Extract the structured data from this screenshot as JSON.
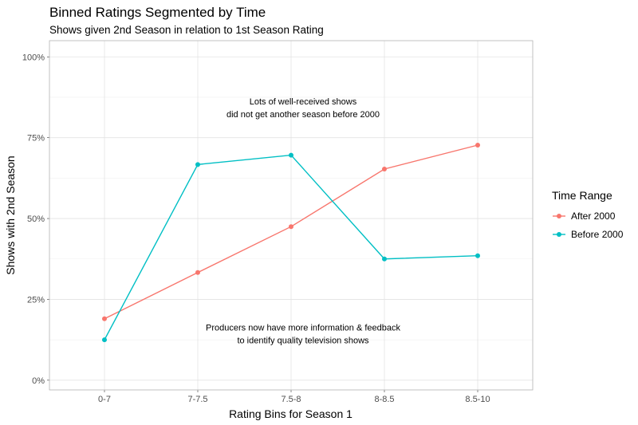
{
  "chart_data": {
    "type": "line",
    "title": "Binned Ratings Segmented by Time",
    "subtitle": "Shows given 2nd Season in relation to 1st Season Rating",
    "xlabel": "Rating Bins for Season 1",
    "ylabel": "Shows with 2nd Season",
    "categories": [
      "0-7",
      "7-7.5",
      "7.5-8",
      "8-8.5",
      "8.5-10"
    ],
    "y_ticks": [
      0,
      25,
      50,
      75,
      100
    ],
    "y_tick_labels": [
      "0%",
      "25%",
      "50%",
      "75%",
      "100%"
    ],
    "ylim": [
      -3,
      105
    ],
    "grid": true,
    "legend": {
      "title": "Time Range",
      "placement": "right"
    },
    "series": [
      {
        "name": "After 2000",
        "color": "#F8766D",
        "values": [
          19,
          33.3,
          47.5,
          65.3,
          72.7
        ]
      },
      {
        "name": "Before 2000",
        "color": "#00BFC4",
        "values": [
          12.5,
          66.7,
          69.6,
          37.5,
          38.5
        ]
      }
    ],
    "annotations": [
      {
        "lines": [
          "Lots of well-received shows",
          "did not get another season before 2000"
        ],
        "x_category": 3.0,
        "y": 84.3
      },
      {
        "lines": [
          "Producers now have more information & feedback",
          "to identify quality television shows"
        ],
        "x_category": 3.0,
        "y": 14.4
      }
    ]
  }
}
